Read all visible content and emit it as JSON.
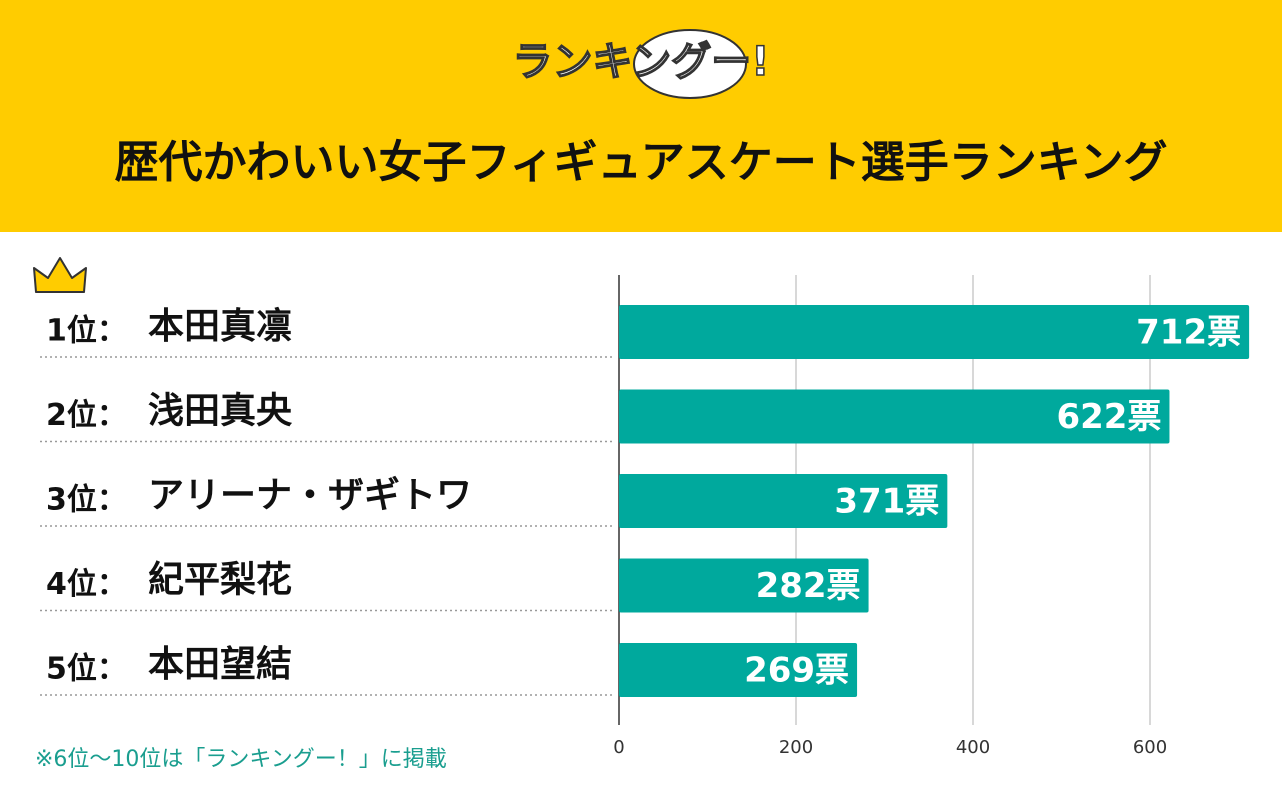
{
  "logo": "ランキングー!",
  "note": "※6位～10位は「ランキングー！」に掲載",
  "chart_data": {
    "type": "bar",
    "orientation": "horizontal",
    "title": "歴代かわいい女子フィギュアスケート選手ランキング",
    "ranks": [
      "1位：",
      "2位：",
      "3位：",
      "4位：",
      "5位："
    ],
    "categories": [
      "本田真凛",
      "浅田真央",
      "アリーナ・ザギトワ",
      "紀平梨花",
      "本田望結"
    ],
    "values": [
      712,
      622,
      371,
      282,
      269
    ],
    "value_labels": [
      "712票",
      "622票",
      "371票",
      "282票",
      "269票"
    ],
    "color": "#00A99D",
    "xlim": [
      0,
      720
    ],
    "xticks": [
      0,
      200,
      400,
      600
    ],
    "grid": true
  }
}
